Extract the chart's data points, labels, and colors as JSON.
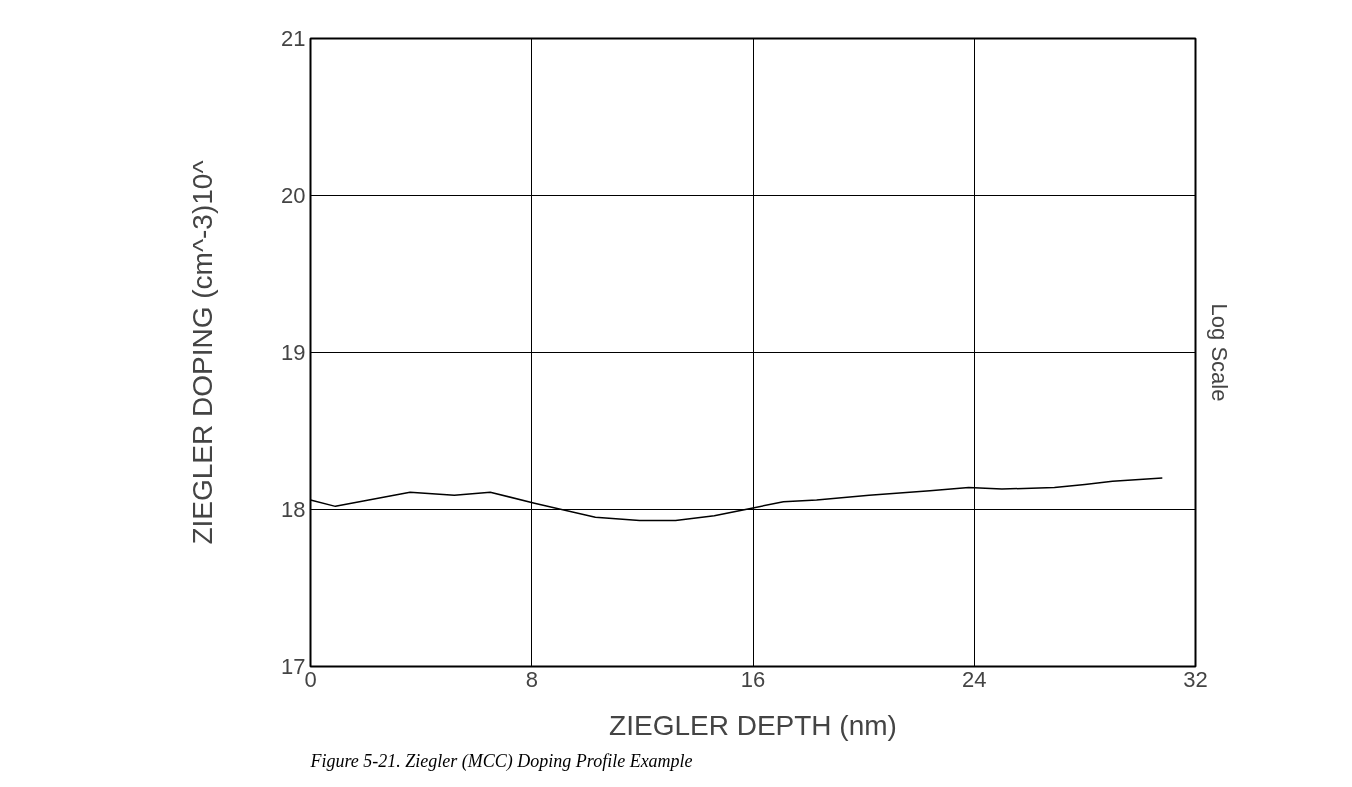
{
  "chart_data": {
    "type": "line",
    "xlabel": "ZIEGLER DEPTH (nm)",
    "ylabel": "ZIEGLER DOPING (cm^-3)10^",
    "y2label": "Log Scale",
    "annotations": [
      "Figure 5-21.    Ziegler (MCC) Doping Profile Example"
    ],
    "x": [
      0,
      0.9,
      3.6,
      5.2,
      6.5,
      8.1,
      10.3,
      11.9,
      13.2,
      14.6,
      16.0,
      17.1,
      18.3,
      20.2,
      22.4,
      23.8,
      25.0,
      26.9,
      28.0,
      29.0,
      30.8
    ],
    "series": [
      {
        "color": "#000000",
        "values": [
          18.06,
          18.02,
          18.11,
          18.09,
          18.11,
          18.04,
          17.95,
          17.93,
          17.93,
          17.96,
          18.01,
          18.05,
          18.06,
          18.09,
          18.12,
          18.14,
          18.13,
          18.14,
          18.16,
          18.18,
          18.2
        ]
      }
    ],
    "xlim": [
      0,
      32
    ],
    "xticks": [
      0,
      8,
      16,
      24,
      32
    ],
    "ylim": [
      17,
      21
    ],
    "yticks": [
      17,
      18,
      19,
      20,
      21
    ],
    "grid": true,
    "marker": "none",
    "line_style": "solid"
  }
}
